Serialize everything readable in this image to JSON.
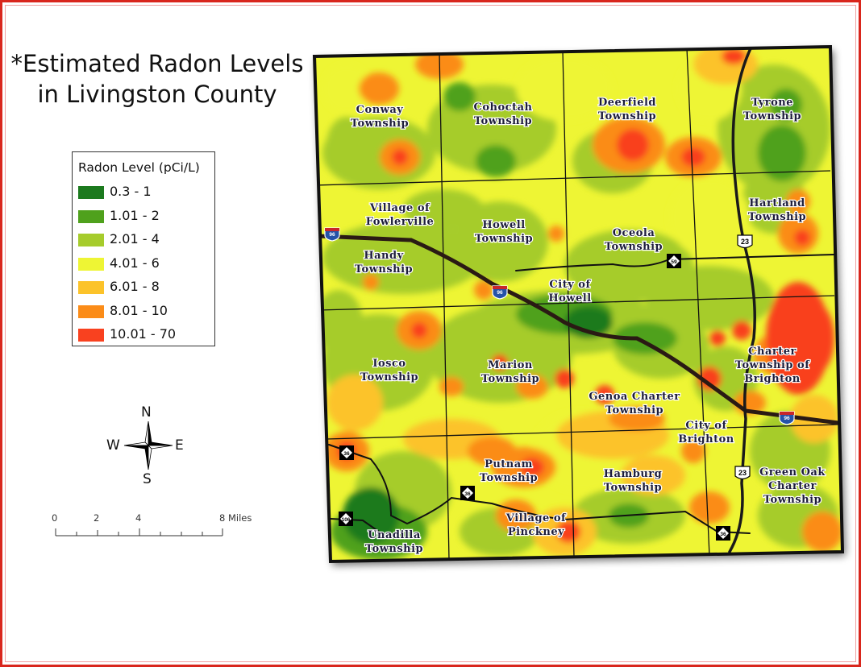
{
  "title": {
    "line1": "*Estimated Radon Levels",
    "line2": "in Livingston County"
  },
  "legend": {
    "title": "Radon Level (pCi/L)",
    "items": [
      {
        "label": "0.3 - 1",
        "color": "#1c7a1e"
      },
      {
        "label": "1.01 - 2",
        "color": "#4fa11c"
      },
      {
        "label": "2.01 - 4",
        "color": "#a6cc2c"
      },
      {
        "label": "4.01 - 6",
        "color": "#eef534"
      },
      {
        "label": "6.01 - 8",
        "color": "#fcc32a"
      },
      {
        "label": "8.01 - 10",
        "color": "#fb8c18"
      },
      {
        "label": "10.01 - 70",
        "color": "#f9411f"
      }
    ]
  },
  "compass": {
    "n": "N",
    "s": "S",
    "e": "E",
    "w": "W"
  },
  "scale_bar": {
    "labels": [
      "0",
      "2",
      "4",
      "8 Miles"
    ]
  },
  "map": {
    "labels": [
      [
        "Conway",
        "Township"
      ],
      [
        "Cohoctah",
        "Township"
      ],
      [
        "Deerfield",
        "Township"
      ],
      [
        "Tyrone",
        "Township"
      ],
      [
        "Village of",
        "Fowlerville"
      ],
      [
        "Handy",
        "Township"
      ],
      [
        "Howell",
        "Township"
      ],
      [
        "Oceola",
        "Township"
      ],
      [
        "Hartland",
        "Township"
      ],
      [
        "City of",
        "Howell"
      ],
      [
        "Iosco",
        "Township"
      ],
      [
        "Marion",
        "Township"
      ],
      [
        "Genoa Charter",
        "Township"
      ],
      [
        "Charter",
        "Township of",
        "Brighton"
      ],
      [
        "City of",
        "Brighton"
      ],
      [
        "Putnam",
        "Township"
      ],
      [
        "Hamburg",
        "Township"
      ],
      [
        "Green Oak",
        "Charter",
        "Township"
      ],
      [
        "Village of",
        "Pinckney"
      ],
      [
        "Unadilla",
        "Township"
      ]
    ],
    "shields": [
      {
        "type": "interstate",
        "number": "96"
      },
      {
        "type": "interstate",
        "number": "96"
      },
      {
        "type": "interstate",
        "number": "96"
      },
      {
        "type": "us",
        "number": "23"
      },
      {
        "type": "us",
        "number": "23"
      },
      {
        "type": "state",
        "number": "59"
      },
      {
        "type": "state",
        "number": "36"
      },
      {
        "type": "state",
        "number": "36"
      },
      {
        "type": "state",
        "number": "36"
      },
      {
        "type": "state",
        "number": "106"
      }
    ]
  }
}
